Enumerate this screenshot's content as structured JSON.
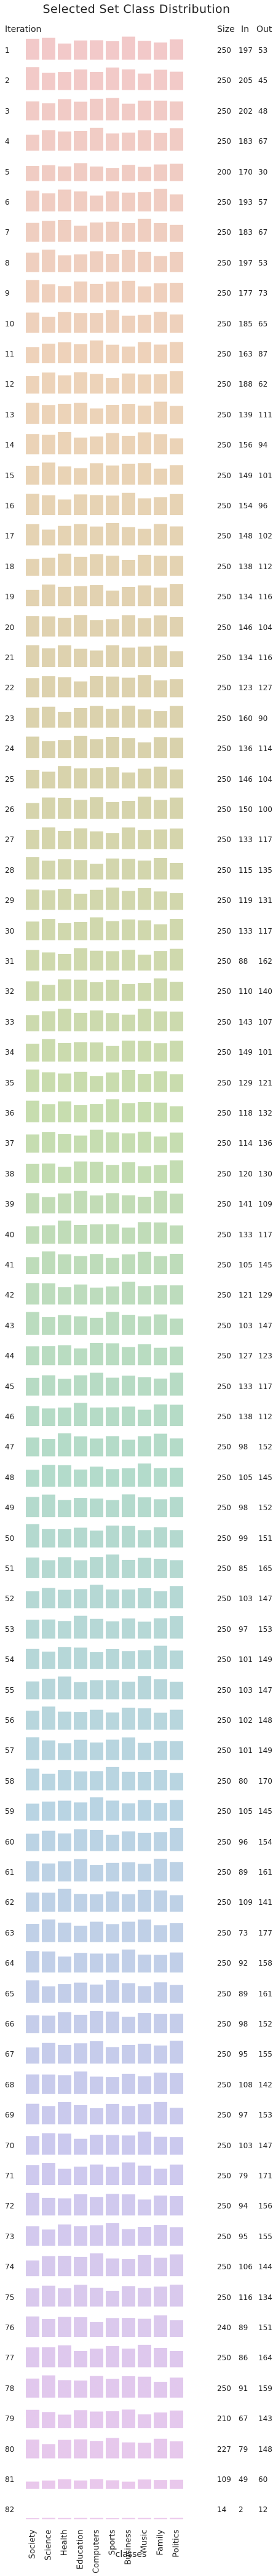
{
  "title": "Selected Set Class Distribution",
  "headers": {
    "iteration": "Iteration",
    "size": "Size",
    "in": "In",
    "out": "Out"
  },
  "xlabel": "classes",
  "row_colors": [
    "#f2c9c9",
    "#edd3b8",
    "#d9d2ac",
    "#c8ddae",
    "#b3dbc9",
    "#b9d4e3",
    "#ccc9ee",
    "#ecc8ec"
  ],
  "chart_data": {
    "type": "bar",
    "categories": [
      "Society",
      "Science",
      "Health",
      "Education",
      "Computers",
      "Sports",
      "Business",
      "Music",
      "Family",
      "Politics"
    ],
    "rows": [
      {
        "iteration": "1",
        "size": 250,
        "in": 197,
        "out": 53
      },
      {
        "iteration": "2",
        "size": 250,
        "in": 205,
        "out": 45
      },
      {
        "iteration": "3",
        "size": 250,
        "in": 202,
        "out": 48
      },
      {
        "iteration": "4",
        "size": 250,
        "in": 183,
        "out": 67
      },
      {
        "iteration": "5",
        "size": 200,
        "in": 170,
        "out": 30
      },
      {
        "iteration": "6",
        "size": 250,
        "in": 193,
        "out": 57
      },
      {
        "iteration": "7",
        "size": 250,
        "in": 183,
        "out": 67
      },
      {
        "iteration": "8",
        "size": 250,
        "in": 197,
        "out": 53
      },
      {
        "iteration": "9",
        "size": 250,
        "in": 177,
        "out": 73
      },
      {
        "iteration": "10",
        "size": 250,
        "in": 185,
        "out": 65
      },
      {
        "iteration": "11",
        "size": 250,
        "in": 163,
        "out": 87
      },
      {
        "iteration": "12",
        "size": 250,
        "in": 188,
        "out": 62
      },
      {
        "iteration": "13",
        "size": 250,
        "in": 139,
        "out": 111
      },
      {
        "iteration": "14",
        "size": 250,
        "in": 156,
        "out": 94
      },
      {
        "iteration": "15",
        "size": 250,
        "in": 149,
        "out": 101
      },
      {
        "iteration": "16",
        "size": 250,
        "in": 154,
        "out": 96
      },
      {
        "iteration": "17",
        "size": 250,
        "in": 148,
        "out": 102
      },
      {
        "iteration": "18",
        "size": 250,
        "in": 138,
        "out": 112
      },
      {
        "iteration": "19",
        "size": 250,
        "in": 134,
        "out": 116
      },
      {
        "iteration": "20",
        "size": 250,
        "in": 146,
        "out": 104
      },
      {
        "iteration": "21",
        "size": 250,
        "in": 134,
        "out": 116
      },
      {
        "iteration": "22",
        "size": 250,
        "in": 123,
        "out": 127
      },
      {
        "iteration": "23",
        "size": 250,
        "in": 160,
        "out": 90
      },
      {
        "iteration": "24",
        "size": 250,
        "in": 136,
        "out": 114
      },
      {
        "iteration": "25",
        "size": 250,
        "in": 146,
        "out": 104
      },
      {
        "iteration": "26",
        "size": 250,
        "in": 150,
        "out": 100
      },
      {
        "iteration": "27",
        "size": 250,
        "in": 133,
        "out": 117
      },
      {
        "iteration": "28",
        "size": 250,
        "in": 115,
        "out": 135
      },
      {
        "iteration": "29",
        "size": 250,
        "in": 119,
        "out": 131
      },
      {
        "iteration": "30",
        "size": 250,
        "in": 133,
        "out": 117
      },
      {
        "iteration": "31",
        "size": 250,
        "in": 88,
        "out": 162
      },
      {
        "iteration": "32",
        "size": 250,
        "in": 110,
        "out": 140
      },
      {
        "iteration": "33",
        "size": 250,
        "in": 143,
        "out": 107
      },
      {
        "iteration": "34",
        "size": 250,
        "in": 149,
        "out": 101
      },
      {
        "iteration": "35",
        "size": 250,
        "in": 129,
        "out": 121
      },
      {
        "iteration": "36",
        "size": 250,
        "in": 118,
        "out": 132
      },
      {
        "iteration": "37",
        "size": 250,
        "in": 114,
        "out": 136
      },
      {
        "iteration": "38",
        "size": 250,
        "in": 120,
        "out": 130
      },
      {
        "iteration": "39",
        "size": 250,
        "in": 141,
        "out": 109
      },
      {
        "iteration": "40",
        "size": 250,
        "in": 133,
        "out": 117
      },
      {
        "iteration": "41",
        "size": 250,
        "in": 105,
        "out": 145
      },
      {
        "iteration": "42",
        "size": 250,
        "in": 121,
        "out": 129
      },
      {
        "iteration": "43",
        "size": 250,
        "in": 103,
        "out": 147
      },
      {
        "iteration": "44",
        "size": 250,
        "in": 127,
        "out": 123
      },
      {
        "iteration": "45",
        "size": 250,
        "in": 133,
        "out": 117
      },
      {
        "iteration": "46",
        "size": 250,
        "in": 138,
        "out": 112
      },
      {
        "iteration": "47",
        "size": 250,
        "in": 98,
        "out": 152
      },
      {
        "iteration": "48",
        "size": 250,
        "in": 105,
        "out": 145
      },
      {
        "iteration": "49",
        "size": 250,
        "in": 98,
        "out": 152
      },
      {
        "iteration": "50",
        "size": 250,
        "in": 99,
        "out": 151
      },
      {
        "iteration": "51",
        "size": 250,
        "in": 85,
        "out": 165
      },
      {
        "iteration": "52",
        "size": 250,
        "in": 103,
        "out": 147
      },
      {
        "iteration": "53",
        "size": 250,
        "in": 97,
        "out": 153
      },
      {
        "iteration": "54",
        "size": 250,
        "in": 101,
        "out": 149
      },
      {
        "iteration": "55",
        "size": 250,
        "in": 103,
        "out": 147
      },
      {
        "iteration": "56",
        "size": 250,
        "in": 102,
        "out": 148
      },
      {
        "iteration": "57",
        "size": 250,
        "in": 101,
        "out": 149
      },
      {
        "iteration": "58",
        "size": 250,
        "in": 80,
        "out": 170
      },
      {
        "iteration": "59",
        "size": 250,
        "in": 105,
        "out": 145
      },
      {
        "iteration": "60",
        "size": 250,
        "in": 96,
        "out": 154
      },
      {
        "iteration": "61",
        "size": 250,
        "in": 89,
        "out": 161
      },
      {
        "iteration": "62",
        "size": 250,
        "in": 109,
        "out": 141
      },
      {
        "iteration": "63",
        "size": 250,
        "in": 73,
        "out": 177
      },
      {
        "iteration": "64",
        "size": 250,
        "in": 92,
        "out": 158
      },
      {
        "iteration": "65",
        "size": 250,
        "in": 89,
        "out": 161
      },
      {
        "iteration": "66",
        "size": 250,
        "in": 98,
        "out": 152
      },
      {
        "iteration": "67",
        "size": 250,
        "in": 95,
        "out": 155
      },
      {
        "iteration": "68",
        "size": 250,
        "in": 108,
        "out": 142
      },
      {
        "iteration": "69",
        "size": 250,
        "in": 97,
        "out": 153
      },
      {
        "iteration": "70",
        "size": 250,
        "in": 103,
        "out": 147
      },
      {
        "iteration": "71",
        "size": 250,
        "in": 79,
        "out": 171
      },
      {
        "iteration": "72",
        "size": 250,
        "in": 94,
        "out": 156
      },
      {
        "iteration": "73",
        "size": 250,
        "in": 95,
        "out": 155
      },
      {
        "iteration": "74",
        "size": 250,
        "in": 106,
        "out": 144
      },
      {
        "iteration": "75",
        "size": 250,
        "in": 116,
        "out": 134
      },
      {
        "iteration": "76",
        "size": 240,
        "in": 89,
        "out": 151
      },
      {
        "iteration": "77",
        "size": 250,
        "in": 86,
        "out": 164
      },
      {
        "iteration": "78",
        "size": 250,
        "in": 91,
        "out": 159
      },
      {
        "iteration": "79",
        "size": 210,
        "in": 67,
        "out": 143
      },
      {
        "iteration": "80",
        "size": 227,
        "in": 79,
        "out": 148
      },
      {
        "iteration": "81",
        "size": 109,
        "in": 49,
        "out": 60
      },
      {
        "iteration": "82",
        "size": 14,
        "in": 2,
        "out": 12
      }
    ]
  }
}
